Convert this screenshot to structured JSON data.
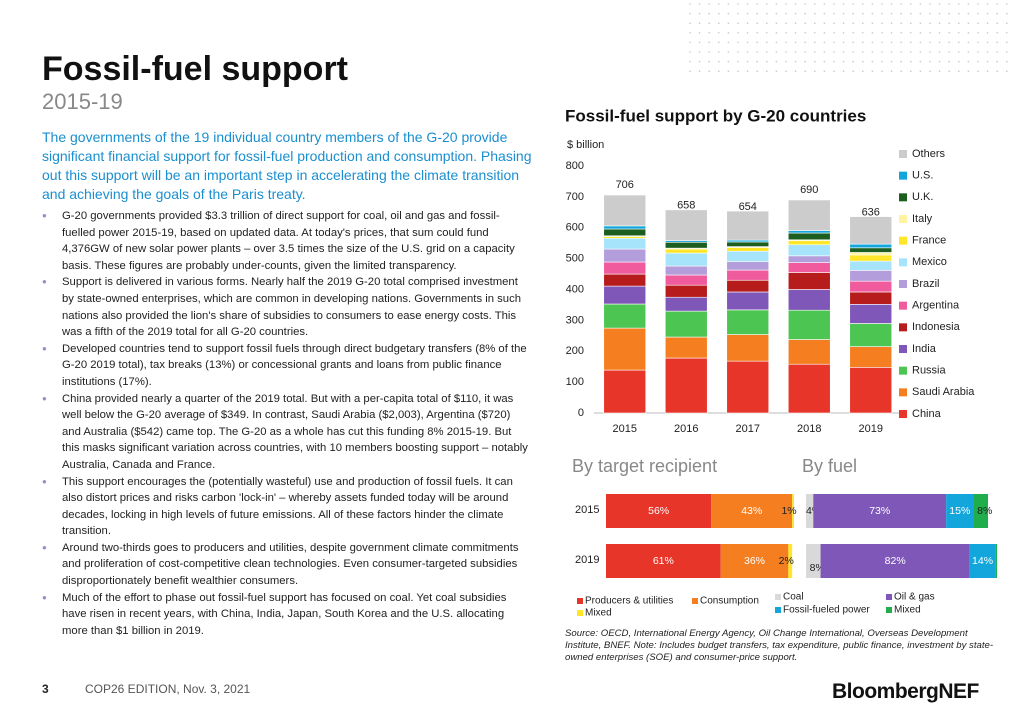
{
  "header": {
    "title": "Fossil-fuel support",
    "subtitle": "2015-19"
  },
  "intro": "The governments of the 19 individual country members of the G-20 provide significant financial support for fossil-fuel production and consumption. Phasing out this support will be an important step in accelerating the climate transition and achieving the goals of the Paris treaty.",
  "bullets": [
    "G-20 governments provided $3.3 trillion of direct support for coal, oil and gas and fossil-fuelled power 2015-19, based on updated data. At today's prices, that sum could fund 4,376GW of new solar power plants – over 3.5 times the size of the U.S. grid on a capacity basis. These figures are probably under-counts, given the limited transparency.",
    "Support is delivered in various forms. Nearly half the 2019 G-20 total comprised investment by state-owned enterprises, which are common in developing nations. Governments in such nations also provided the lion's share of subsidies to consumers to ease energy costs. This was a fifth of the 2019 total for all G-20 countries.",
    "Developed countries tend to support fossil fuels through direct budgetary transfers (8% of the G-20 2019 total), tax breaks (13%) or concessional grants and loans from public finance institutions (17%).",
    "China provided nearly a quarter of the 2019 total. But with a per-capita total of $110, it was well below the G-20 average of $349. In contrast, Saudi Arabia ($2,003), Argentina ($720) and Australia ($542) came top. The G-20 as a whole has cut this funding 8% 2015-19. But this masks significant variation across countries, with 10 members boosting support – notably Australia, Canada and France.",
    "This support encourages the (potentially wasteful) use and production of fossil fuels. It can also distort prices and risks carbon 'lock-in' – whereby assets funded today will be around decades, locking in high levels of future emissions. All of these factors hinder the climate transition.",
    "Around two-thirds goes to producers and utilities, despite government climate commitments and proliferation of cost-competitive clean technologies. Even consumer-targeted subsidies disproportionately benefit wealthier consumers.",
    "Much of the effort to phase out fossil-fuel support has focused on coal. Yet coal subsidies have risen in recent years, with China, India, Japan, South Korea and the U.S. allocating more than $1 billion in 2019."
  ],
  "chart_data": [
    {
      "type": "bar",
      "stacked": true,
      "title": "Fossil-fuel support by G-20 countries",
      "y_label": "$ billion",
      "categories": [
        "2015",
        "2016",
        "2017",
        "2018",
        "2019"
      ],
      "totals": [
        706,
        658,
        654,
        690,
        636
      ],
      "ylim": [
        0,
        800
      ],
      "yticks": [
        0,
        100,
        200,
        300,
        400,
        500,
        600,
        700,
        800
      ],
      "series": [
        {
          "name": "China",
          "color": "#e8352a",
          "values": [
            139,
            178,
            168,
            158,
            148
          ]
        },
        {
          "name": "Saudi Arabia",
          "color": "#f57f20",
          "values": [
            136,
            68,
            86,
            80,
            67
          ]
        },
        {
          "name": "Russia",
          "color": "#4cc552",
          "values": [
            78,
            84,
            80,
            95,
            75
          ]
        },
        {
          "name": "India",
          "color": "#7e57b8",
          "values": [
            58,
            45,
            58,
            67,
            62
          ]
        },
        {
          "name": "Indonesia",
          "color": "#b71c1c",
          "values": [
            39,
            39,
            38,
            55,
            40
          ]
        },
        {
          "name": "Argentina",
          "color": "#ef5b9c",
          "values": [
            39,
            33,
            33,
            32,
            35
          ]
        },
        {
          "name": "Brazil",
          "color": "#b39ddb",
          "values": [
            42,
            29,
            27,
            22,
            35
          ]
        },
        {
          "name": "Mexico",
          "color": "#a6e4fb",
          "values": [
            35,
            42,
            34,
            36,
            30
          ]
        },
        {
          "name": "France",
          "color": "#ffe629",
          "values": [
            5,
            13,
            12,
            13,
            20
          ]
        },
        {
          "name": "Italy",
          "color": "#fff3a0",
          "values": [
            3,
            3,
            3,
            3,
            8
          ]
        },
        {
          "name": "U.K.",
          "color": "#1b5e20",
          "values": [
            22,
            19,
            15,
            22,
            15
          ]
        },
        {
          "name": "U.S.",
          "color": "#12a6dc",
          "values": [
            10,
            5,
            6,
            8,
            12
          ]
        },
        {
          "name": "Others",
          "color": "#cccccc",
          "values": [
            100,
            100,
            94,
            99,
            89
          ]
        }
      ]
    },
    {
      "type": "hbar",
      "stacked": true,
      "title": "By target recipient",
      "categories": [
        "2015",
        "2019"
      ],
      "xlim": [
        0,
        100
      ],
      "series": [
        {
          "name": "Producers & utilities",
          "color": "#e8352a",
          "values": [
            56,
            61
          ],
          "value_labels": [
            "56%",
            "61%"
          ]
        },
        {
          "name": "Consumption",
          "color": "#f57f20",
          "values": [
            43,
            36
          ],
          "value_labels": [
            "43%",
            "36%"
          ]
        },
        {
          "name": "Mixed",
          "color": "#ffe629",
          "values": [
            1,
            2
          ],
          "value_labels": [
            "1%",
            "2%"
          ]
        }
      ]
    },
    {
      "type": "hbar",
      "stacked": true,
      "title": "By fuel",
      "categories": [
        "2015",
        "2019"
      ],
      "xlim": [
        0,
        100
      ],
      "series": [
        {
          "name": "Coal",
          "color": "#d9d9d9",
          "values": [
            4,
            8
          ],
          "value_labels": [
            "4%",
            "8%"
          ]
        },
        {
          "name": "Oil & gas",
          "color": "#7e57b8",
          "values": [
            73,
            82
          ],
          "value_labels": [
            "73%",
            "82%"
          ]
        },
        {
          "name": "Fossil-fueled power",
          "color": "#12a6dc",
          "values": [
            15,
            14
          ],
          "value_labels": [
            "15%",
            "14%"
          ]
        },
        {
          "name": "Mixed",
          "color": "#1fae4b",
          "values": [
            8,
            1
          ],
          "value_labels": [
            "8%",
            null
          ]
        }
      ]
    }
  ],
  "source": "Source: OECD, International Energy Agency, Oil Change International, Overseas Development Institute, BNEF. Note: Includes budget transfers, tax expenditure, public finance, investment by state-owned enterprises (SOE) and consumer-price support.",
  "footer": {
    "page": "3",
    "edition": "COP26 EDITION, Nov. 3, 2021",
    "brand": "BloombergNEF"
  }
}
